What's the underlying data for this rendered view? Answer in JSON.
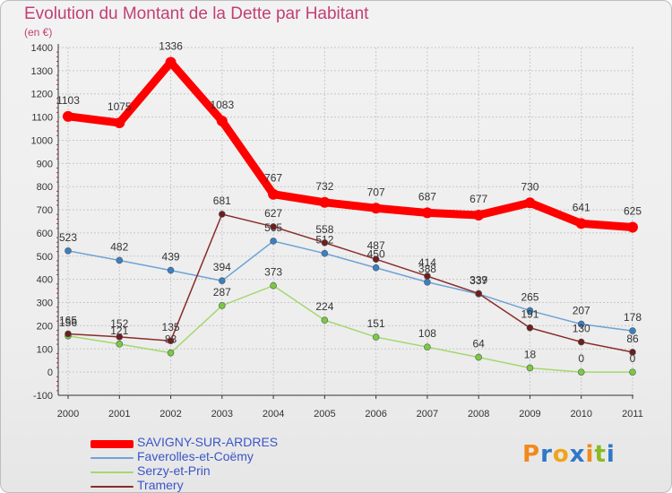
{
  "title": "Evolution du Montant de la Dette par Habitant",
  "subtitle": "(en €)",
  "colors": {
    "title": "#c23f74",
    "grid": "#c8c8c8",
    "axis": "#333333",
    "tick_mark": "#d9254f"
  },
  "logo": {
    "text": "Proxiti",
    "letters": [
      {
        "ch": "P",
        "color": "#f08a1c"
      },
      {
        "ch": "r",
        "color": "#2f77c8"
      },
      {
        "ch": "o",
        "color": "#f0a31c"
      },
      {
        "ch": "x",
        "color": "#2f77c8"
      },
      {
        "ch": "i",
        "color": "#f08a1c"
      },
      {
        "ch": "t",
        "color": "#88bb22"
      },
      {
        "ch": "i",
        "color": "#2f77c8"
      }
    ]
  },
  "chart_data": {
    "type": "line",
    "x": [
      "2000",
      "2001",
      "2002",
      "2003",
      "2004",
      "2005",
      "2006",
      "2007",
      "2008",
      "2009",
      "2010",
      "2011"
    ],
    "yticks": [
      -100,
      0,
      100,
      200,
      300,
      400,
      500,
      600,
      700,
      800,
      900,
      1000,
      1100,
      1200,
      1300,
      1400
    ],
    "ylim": [
      -100,
      1400
    ],
    "grid": true,
    "legend_position": "bottom-left",
    "series": [
      {
        "name": "SAVIGNY-SUR-ARDRES",
        "color": "#ff0000",
        "marker_color": "#ff0000",
        "label_color": "#333333",
        "emphasis": "thick",
        "values": [
          1103,
          1075,
          1336,
          1083,
          767,
          732,
          707,
          687,
          677,
          730,
          641,
          625
        ]
      },
      {
        "name": "Faverolles-et-Coëmy",
        "color": "#6da3d6",
        "marker_color": "#3a7fc4",
        "label_color": "#333333",
        "emphasis": "normal",
        "values": [
          523,
          482,
          439,
          394,
          565,
          512,
          450,
          388,
          337,
          265,
          207,
          178
        ]
      },
      {
        "name": "Serzy-et-Prin",
        "color": "#a4d86e",
        "marker_color": "#7ac943",
        "label_color": "#333333",
        "emphasis": "normal",
        "values": [
          156,
          121,
          83,
          287,
          373,
          224,
          151,
          108,
          64,
          18,
          0,
          0
        ]
      },
      {
        "name": "Tramery",
        "color": "#8b2b2b",
        "marker_color": "#6b1f1f",
        "label_color": "#333333",
        "emphasis": "normal",
        "values": [
          165,
          152,
          135,
          681,
          627,
          558,
          487,
          414,
          339,
          191,
          130,
          86
        ]
      }
    ]
  }
}
